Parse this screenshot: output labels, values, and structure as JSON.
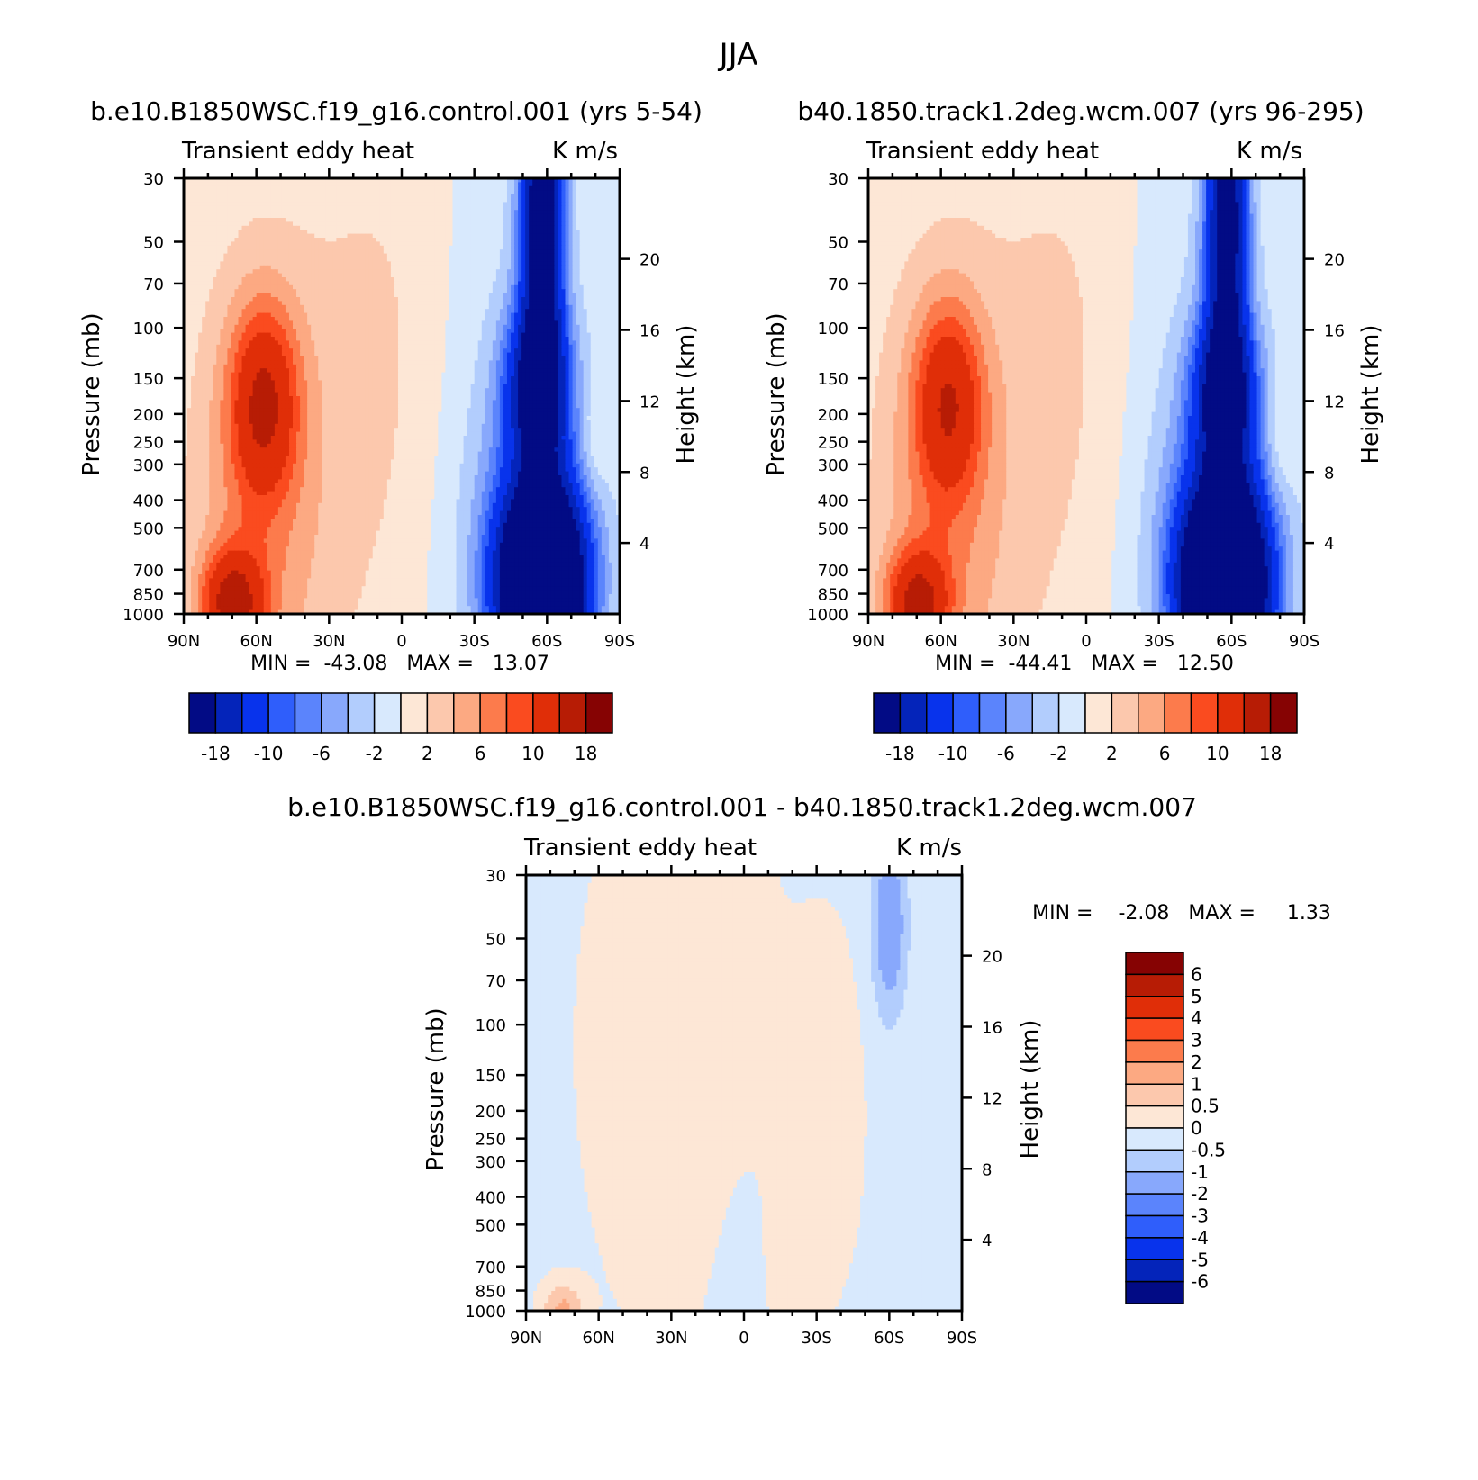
{
  "figure_title": "JJA",
  "colors": {
    "pos": [
      "#fde7d6",
      "#fcc8ad",
      "#fca982",
      "#fc7b4c",
      "#fa4b1f",
      "#e02e08",
      "#b71c05",
      "#860303"
    ],
    "neg": [
      "#d8e9fd",
      "#b2cdfd",
      "#88a8fc",
      "#5b84fc",
      "#2f5efb",
      "#0833ec",
      "#0424ba",
      "#020b85"
    ]
  },
  "chart_data": [
    {
      "type": "heatmap",
      "id": "panel1",
      "title": "b.e10.B1850WSC.f19_g16.control.001 (yrs 5-54)",
      "subtitle_left": "Transient eddy heat",
      "subtitle_right": "K m/s",
      "ylabel": "Pressure (mb)",
      "ylabel_right": "Height (km)",
      "x_ticks": [
        "90N",
        "60N",
        "30N",
        "0",
        "30S",
        "60S",
        "90S"
      ],
      "x_range": [
        "90N",
        "90S"
      ],
      "y_ticks": [
        30,
        50,
        70,
        100,
        150,
        200,
        250,
        300,
        400,
        500,
        700,
        850,
        1000
      ],
      "y_range": [
        1000,
        30
      ],
      "y_scale": "log",
      "height_ticks": [
        4,
        8,
        12,
        16,
        20
      ],
      "stats_text": "MIN =  -43.08   MAX =   13.07",
      "min": -43.08,
      "max": 13.07,
      "colorbar": {
        "orientation": "horizontal",
        "levels": [
          -18,
          -14,
          -10,
          -8,
          -6,
          -4,
          -2,
          0,
          2,
          4,
          6,
          8,
          10,
          14,
          18
        ],
        "labels": [
          "-18",
          "-10",
          "-6",
          "-2",
          "2",
          "6",
          "10",
          "18"
        ]
      },
      "features": [
        {
          "lat": -58,
          "p": 40,
          "v": -24
        },
        {
          "lat": -56,
          "p": 160,
          "v": -18
        },
        {
          "lat": -58,
          "p": 800,
          "v": -40
        },
        {
          "lat": 57,
          "p": 180,
          "v": 11
        },
        {
          "lat": 70,
          "p": 920,
          "v": 13
        },
        {
          "lat": 5,
          "p": 110,
          "v": 1.5
        }
      ]
    },
    {
      "type": "heatmap",
      "id": "panel2",
      "title": "b40.1850.track1.2deg.wcm.007 (yrs 96-295)",
      "subtitle_left": "Transient eddy heat",
      "subtitle_right": "K m/s",
      "ylabel": "Pressure (mb)",
      "ylabel_right": "Height (km)",
      "x_ticks": [
        "90N",
        "60N",
        "30N",
        "0",
        "30S",
        "60S",
        "90S"
      ],
      "x_range": [
        "90N",
        "90S"
      ],
      "y_ticks": [
        30,
        50,
        70,
        100,
        150,
        200,
        250,
        300,
        400,
        500,
        700,
        850,
        1000
      ],
      "y_range": [
        1000,
        30
      ],
      "y_scale": "log",
      "height_ticks": [
        4,
        8,
        12,
        16,
        20
      ],
      "stats_text": "MIN =  -44.41   MAX =   12.50",
      "min": -44.41,
      "max": 12.5,
      "colorbar": {
        "orientation": "horizontal",
        "levels": [
          -18,
          -14,
          -10,
          -8,
          -6,
          -4,
          -2,
          0,
          2,
          4,
          6,
          8,
          10,
          14,
          18
        ],
        "labels": [
          "-18",
          "-10",
          "-6",
          "-2",
          "2",
          "6",
          "10",
          "18"
        ]
      },
      "features": [
        {
          "lat": -58,
          "p": 40,
          "v": -22
        },
        {
          "lat": -57,
          "p": 170,
          "v": -18
        },
        {
          "lat": -57,
          "p": 800,
          "v": -42
        },
        {
          "lat": 57,
          "p": 180,
          "v": 10
        },
        {
          "lat": 70,
          "p": 920,
          "v": 12
        },
        {
          "lat": 5,
          "p": 110,
          "v": 1.5
        }
      ]
    },
    {
      "type": "heatmap",
      "id": "panel3",
      "title": "b.e10.B1850WSC.f19_g16.control.001 - b40.1850.track1.2deg.wcm.007",
      "subtitle_left": "Transient eddy heat",
      "subtitle_right": "K m/s",
      "ylabel": "Pressure (mb)",
      "ylabel_right": "Height (km)",
      "x_ticks": [
        "90N",
        "60N",
        "30N",
        "0",
        "30S",
        "60S",
        "90S"
      ],
      "x_range": [
        "90N",
        "90S"
      ],
      "y_ticks": [
        30,
        50,
        70,
        100,
        150,
        200,
        250,
        300,
        400,
        500,
        700,
        850,
        1000
      ],
      "y_range": [
        1000,
        30
      ],
      "y_scale": "log",
      "height_ticks": [
        4,
        8,
        12,
        16,
        20
      ],
      "stats_text": "MIN =    -2.08   MAX =     1.33",
      "min": -2.08,
      "max": 1.33,
      "colorbar": {
        "orientation": "vertical",
        "levels": [
          -6,
          -5,
          -4,
          -3,
          -2,
          -1,
          -0.5,
          0,
          0.5,
          1,
          2,
          3,
          4,
          5,
          6
        ],
        "labels": [
          "6",
          "5",
          "4",
          "3",
          "2",
          "1",
          "0.5",
          "0",
          "-0.5",
          "-1",
          "-2",
          "-3",
          "-4",
          "-5",
          "-6"
        ]
      },
      "features": [
        {
          "lat": -60,
          "p": 45,
          "v": -1.5
        },
        {
          "lat": 25,
          "p": 120,
          "v": 0.4
        },
        {
          "lat": -35,
          "p": 200,
          "v": 0.3
        },
        {
          "lat": 75,
          "p": 980,
          "v": 1.2
        }
      ]
    }
  ]
}
